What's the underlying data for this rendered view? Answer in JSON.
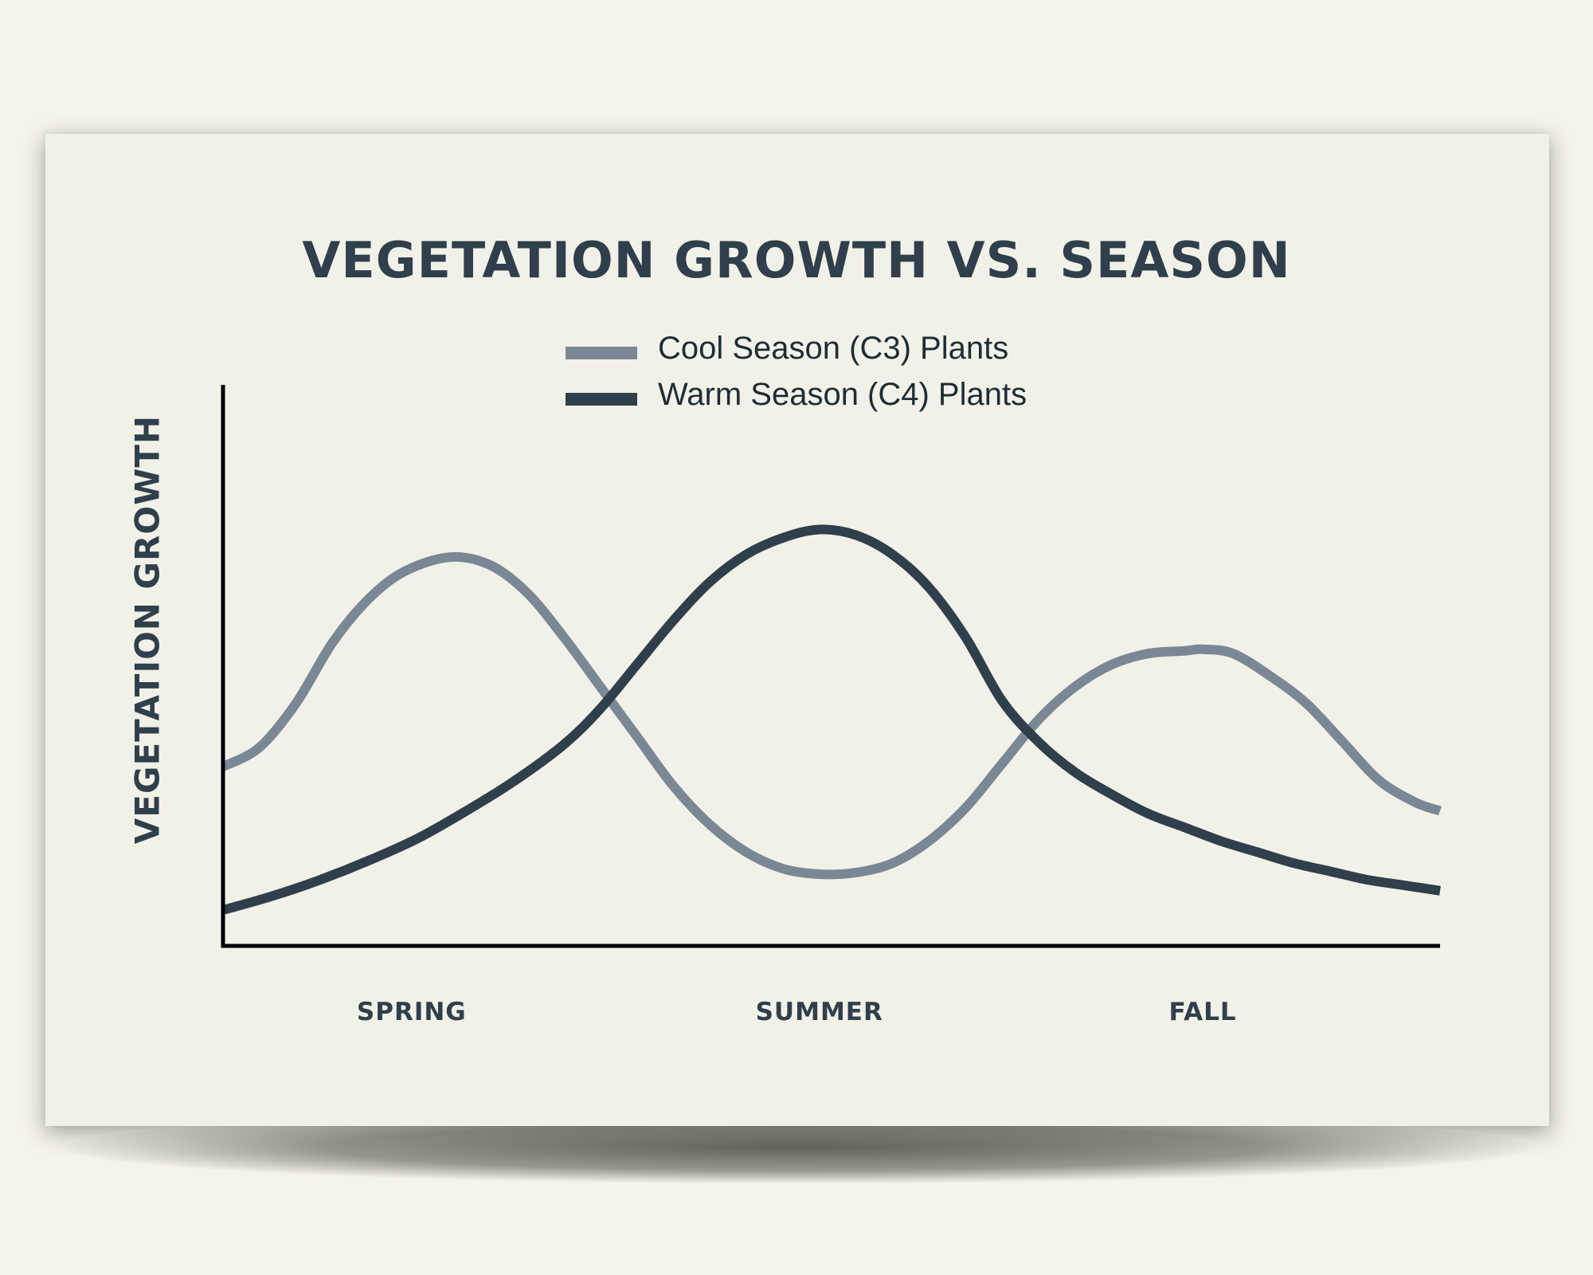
{
  "colors": {
    "background": "#f4f3ec",
    "card": "#f2f1e8",
    "title": "#2f3f4b",
    "cool_series": "#7a8895",
    "warm_series": "#2f3f4b",
    "axis": "#000000"
  },
  "chart_data": {
    "type": "line",
    "title": "VEGETATION GROWTH VS. SEASON",
    "xlabel": "",
    "ylabel": "VEGETATION GROWTH",
    "xlim": [
      0,
      100
    ],
    "ylim": [
      0,
      100
    ],
    "grid": false,
    "legend_position": "top-center",
    "categories": [
      {
        "label": "SPRING",
        "x": 15.5
      },
      {
        "label": "SUMMER",
        "x": 49
      },
      {
        "label": "FALL",
        "x": 80.5
      }
    ],
    "series": [
      {
        "name": "Cool Season (C3) Plants",
        "color": "#7a8895",
        "x": [
          0,
          3,
          6,
          9,
          12,
          15,
          18.7,
          22,
          25,
          28,
          31,
          34,
          37,
          40,
          43,
          46,
          49,
          52,
          55,
          58,
          61,
          64,
          67,
          70,
          73,
          76,
          79,
          80.5,
          83,
          86,
          89,
          92,
          95,
          98,
          100
        ],
        "y": [
          32.5,
          36,
          44,
          55,
          63,
          68,
          70.5,
          69,
          64,
          56,
          47,
          38,
          29,
          22,
          17,
          14,
          13,
          13.3,
          15,
          19,
          25,
          33,
          41,
          47,
          51,
          53,
          53.5,
          53.8,
          53,
          49,
          44,
          37,
          30,
          26,
          24.5
        ]
      },
      {
        "name": "Warm Season (C4) Plants",
        "color": "#2f3f4b",
        "x": [
          0,
          4,
          8,
          12,
          16,
          20,
          24,
          28,
          31,
          34,
          37,
          40,
          43,
          46,
          49,
          52,
          55,
          58,
          61,
          64,
          67,
          70,
          73,
          76,
          79,
          82,
          85,
          88,
          91,
          94,
          97,
          100
        ],
        "y": [
          6.5,
          9,
          12,
          15.5,
          19.5,
          24.5,
          30,
          36.5,
          43,
          51,
          59,
          66,
          71,
          74,
          75.5,
          74.5,
          71,
          65,
          56,
          44.5,
          37,
          31.5,
          27.5,
          24,
          21.5,
          19,
          17,
          15,
          13.5,
          12,
          11,
          10
        ]
      }
    ]
  }
}
